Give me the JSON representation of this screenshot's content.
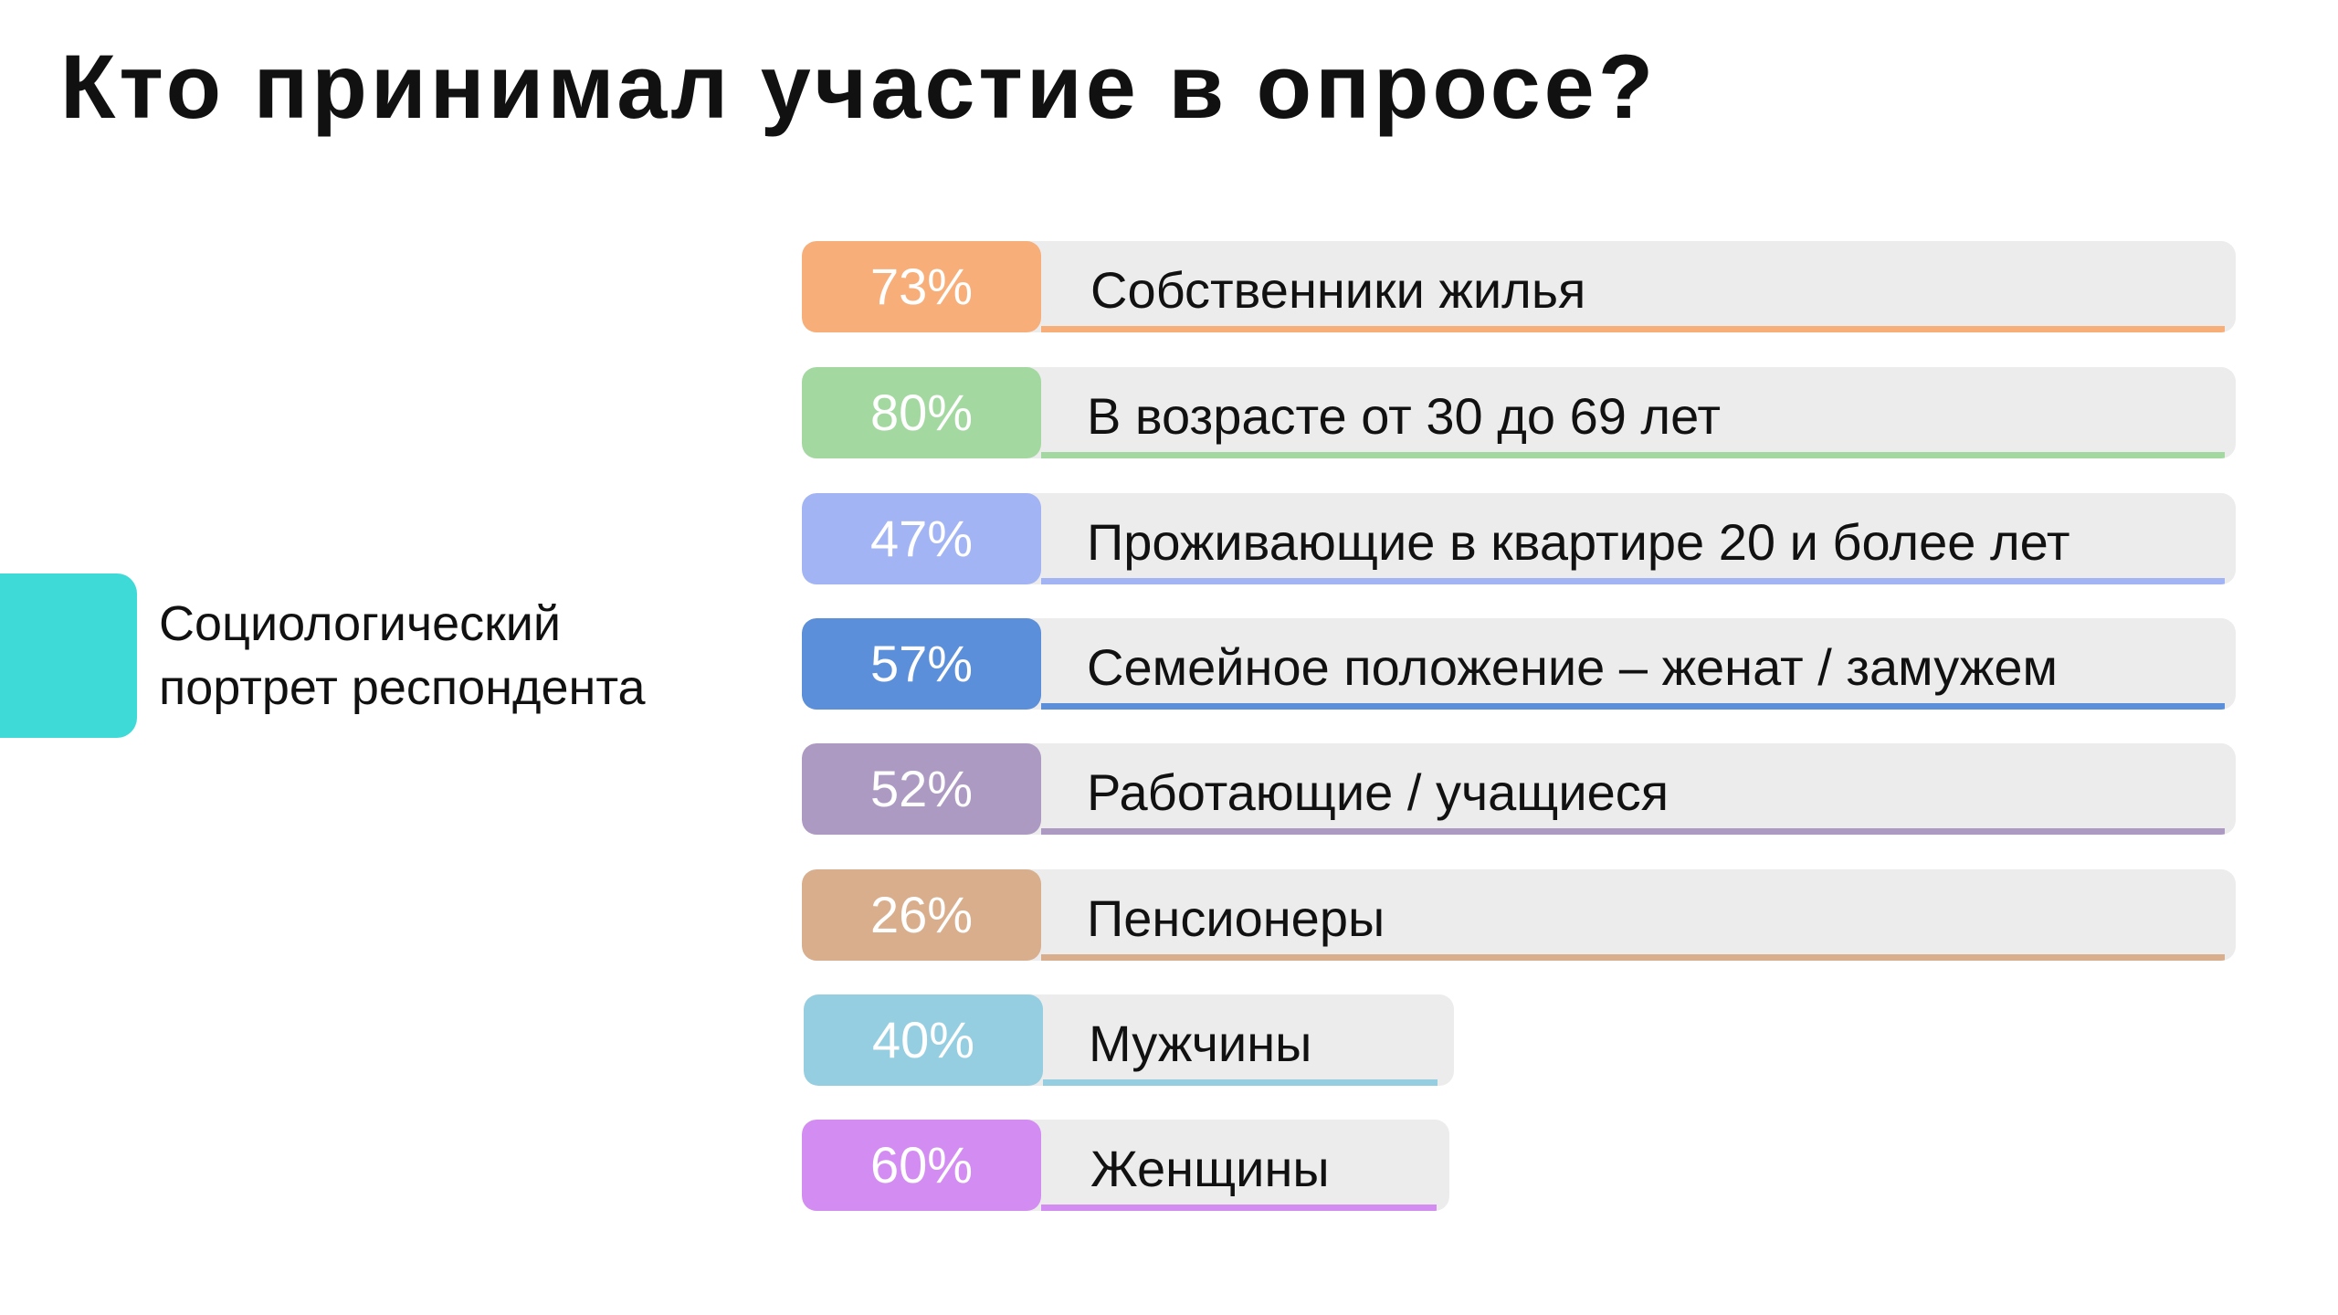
{
  "title": "Кто принимал участие в опросе?",
  "side_caption": {
    "line1": "Социологический",
    "line2": "портрет респондента"
  },
  "rows": [
    {
      "percent": "73%",
      "label": "Собственники жилья",
      "color": "#f7ae78"
    },
    {
      "percent": "80%",
      "label": "В возрасте от 30 до 69 лет",
      "color": "#a3d9a0"
    },
    {
      "percent": "47%",
      "label": "Проживающие в квартире 20 и более лет",
      "color": "#a3b4f4"
    },
    {
      "percent": "57%",
      "label": "Семейное положение – женат / замужем",
      "color": "#5b8fd9"
    },
    {
      "percent": "52%",
      "label": "Работающие / учащиеся",
      "color": "#ac9ac3"
    },
    {
      "percent": "26%",
      "label": "Пенсионеры",
      "color": "#d8ae8c"
    },
    {
      "percent": "40%",
      "label": "Мужчины",
      "color": "#95cee0"
    },
    {
      "percent": "60%",
      "label": "Женщины",
      "color": "#d38df2"
    }
  ],
  "colors": {
    "accent": "#3ddad7",
    "row_background": "#ececec"
  }
}
